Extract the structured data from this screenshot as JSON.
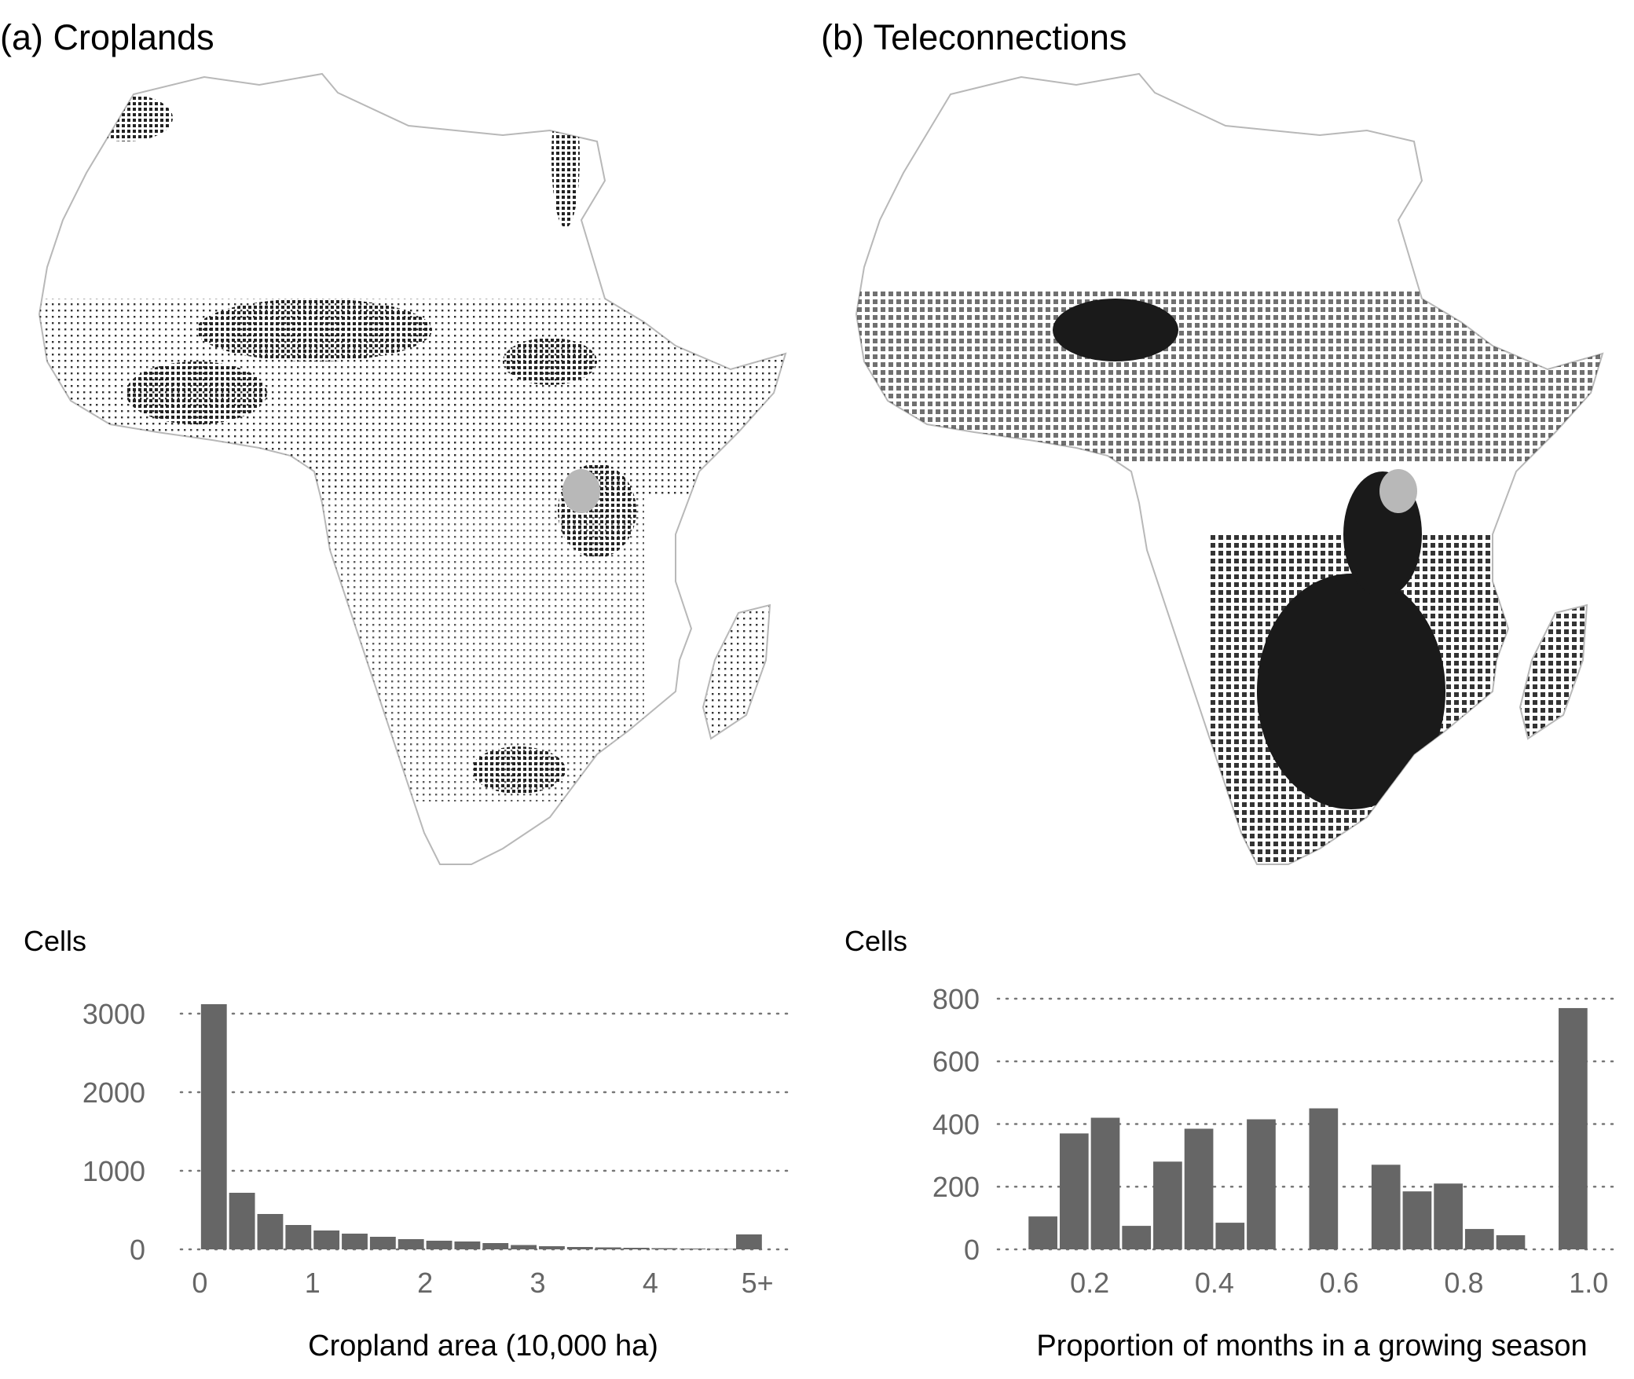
{
  "panel_a": {
    "title": "(a) Croplands"
  },
  "panel_b": {
    "title": "(b) Teleconnections"
  },
  "chart_data": [
    {
      "type": "bar",
      "ylabel": "Cells",
      "xlabel": "Cropland area (10,000 ha)",
      "ylim": [
        0,
        3200
      ],
      "yticks": [
        0,
        1000,
        2000,
        3000
      ],
      "xticks": [
        {
          "value": 0,
          "label": "0"
        },
        {
          "value": 1,
          "label": "1"
        },
        {
          "value": 2,
          "label": "2"
        },
        {
          "value": 3,
          "label": "3"
        },
        {
          "value": 4,
          "label": "4"
        },
        {
          "value": 4.95,
          "label": "5+"
        }
      ],
      "xlim": [
        -0.1,
        5.2
      ],
      "bin_width": 0.25,
      "bins": [
        0,
        0.25,
        0.5,
        0.75,
        1.0,
        1.25,
        1.5,
        1.75,
        2.0,
        2.25,
        2.5,
        2.75,
        3.0,
        3.25,
        3.5,
        3.75,
        4.0,
        4.25,
        4.5,
        4.75
      ],
      "values": [
        3120,
        720,
        450,
        310,
        240,
        200,
        160,
        130,
        110,
        100,
        80,
        55,
        40,
        30,
        25,
        20,
        15,
        10,
        5,
        190
      ],
      "grid": "horizontal dotted"
    },
    {
      "type": "bar",
      "ylabel": "Cells",
      "xlabel": "Proportion of months in a growing season",
      "ylim": [
        0,
        820
      ],
      "yticks": [
        0,
        200,
        400,
        600,
        800
      ],
      "xticks": [
        {
          "value": 0.2,
          "label": "0.2"
        },
        {
          "value": 0.4,
          "label": "0.4"
        },
        {
          "value": 0.6,
          "label": "0.6"
        },
        {
          "value": 0.8,
          "label": "0.8"
        },
        {
          "value": 1.0,
          "label": "1.0"
        }
      ],
      "xlim": [
        0.065,
        1.035
      ],
      "bin_width": 0.05,
      "bins": [
        0.1,
        0.15,
        0.2,
        0.25,
        0.3,
        0.35,
        0.4,
        0.45,
        0.55,
        0.65,
        0.7,
        0.75,
        0.8,
        0.85,
        0.95
      ],
      "values": [
        105,
        370,
        420,
        75,
        280,
        385,
        85,
        415,
        450,
        270,
        185,
        210,
        65,
        45,
        770
      ],
      "grid": "horizontal dotted"
    }
  ]
}
